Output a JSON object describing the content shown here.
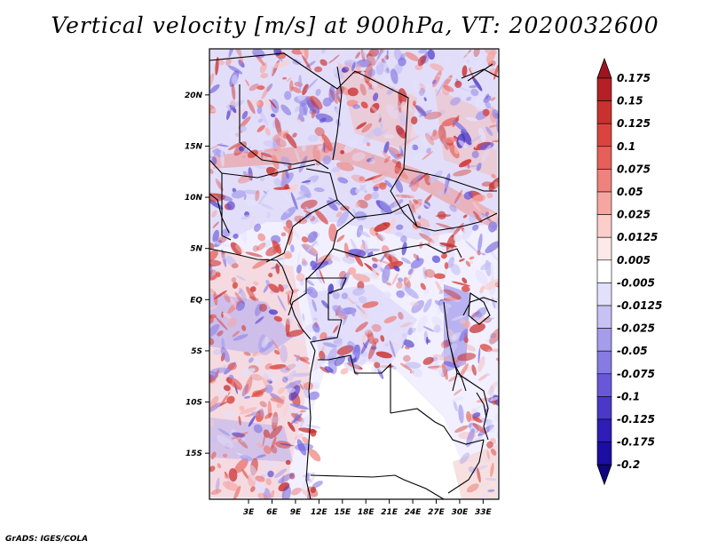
{
  "title": "Vertical velocity [m/s] at 900hPa, VT: 2020032600",
  "footer": "GrADS: IGES/COLA",
  "map": {
    "region": "Central Africa",
    "lon_range": [
      -2,
      35
    ],
    "lat_range": [
      -19.5,
      24.5
    ],
    "x_ticks": [
      "3E",
      "6E",
      "9E",
      "12E",
      "15E",
      "18E",
      "21E",
      "24E",
      "27E",
      "30E",
      "33E"
    ],
    "x_tick_values": [
      3,
      6,
      9,
      12,
      15,
      18,
      21,
      24,
      27,
      30,
      33
    ],
    "y_ticks": [
      "20N",
      "15N",
      "10N",
      "5N",
      "EQ",
      "5S",
      "10S",
      "15S"
    ],
    "y_tick_values": [
      20,
      15,
      10,
      5,
      0,
      -5,
      -10,
      -15
    ]
  },
  "colorbar": {
    "labels": [
      "0.175",
      "0.15",
      "0.125",
      "0.1",
      "0.075",
      "0.05",
      "0.025",
      "0.0125",
      "0.005",
      "-0.005",
      "-0.0125",
      "-0.025",
      "-0.05",
      "-0.075",
      "-0.1",
      "-0.125",
      "-0.175",
      "-0.2"
    ],
    "colors": [
      "#a0141e",
      "#b52026",
      "#c9312f",
      "#d9453e",
      "#e65f58",
      "#ef827c",
      "#f6a6a1",
      "#fbcdcb",
      "#fde9e8",
      "#ffffff",
      "#e3e0fb",
      "#c7c1f4",
      "#a59cec",
      "#867ae3",
      "#6858d8",
      "#4a38c9",
      "#2e1db7",
      "#1a0ea3",
      "#10067f"
    ]
  }
}
